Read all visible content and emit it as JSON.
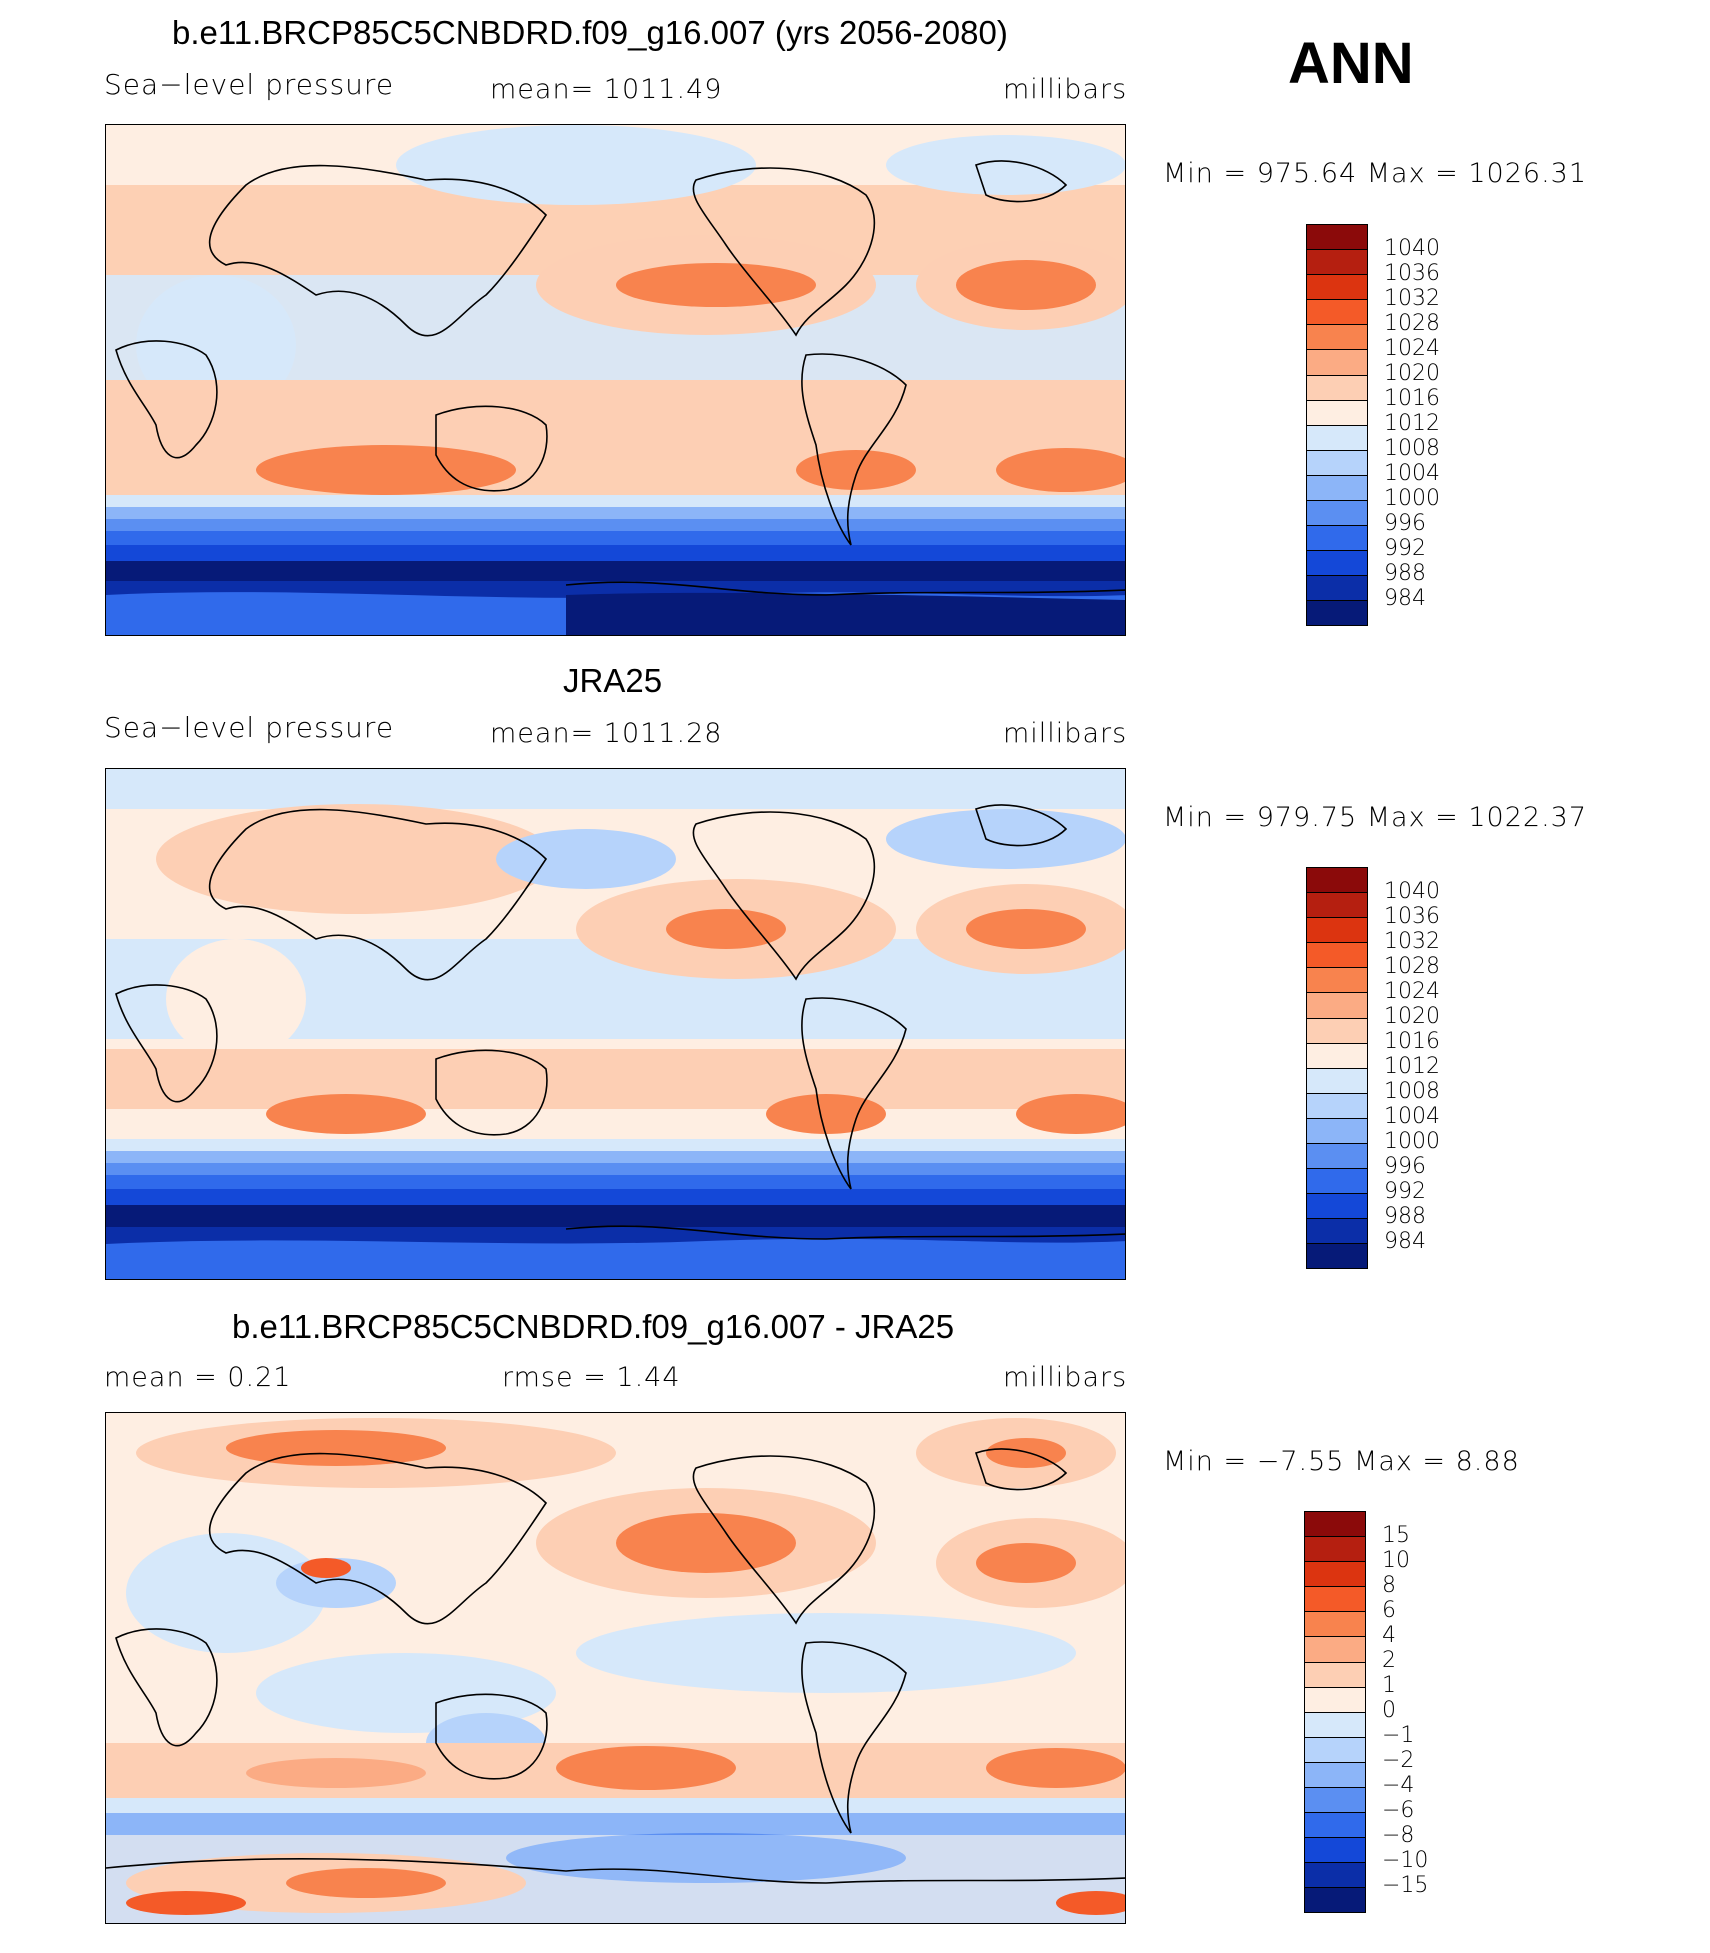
{
  "season": "ANN",
  "panels": [
    {
      "title": "b.e11.BRCP85C5CNBDRD.f09_g16.007 (yrs 2056-2080)",
      "left_label": "Sea−level pressure",
      "center_label": "mean=  1011.49",
      "right_label": "millibars",
      "minmax": "Min  =  975.64  Max  =  1026.31",
      "colorbar_labels": [
        "1040",
        "1036",
        "1032",
        "1028",
        "1024",
        "1020",
        "1016",
        "1012",
        "1008",
        "1004",
        "1000",
        "996",
        "992",
        "988",
        "984"
      ]
    },
    {
      "title": "JRA25",
      "left_label": "Sea−level pressure",
      "center_label": "mean=  1011.28",
      "right_label": "millibars",
      "minmax": "Min  =  979.75  Max  =  1022.37",
      "colorbar_labels": [
        "1040",
        "1036",
        "1032",
        "1028",
        "1024",
        "1020",
        "1016",
        "1012",
        "1008",
        "1004",
        "1000",
        "996",
        "992",
        "988",
        "984"
      ]
    },
    {
      "title": "b.e11.BRCP85C5CNBDRD.f09_g16.007 - JRA25",
      "left_label": "mean  =     0.21",
      "center_label": "rmse  =     1.44",
      "right_label": "millibars",
      "minmax": "Min  =   −7.55  Max  =     8.88",
      "colorbar_labels": [
        "15",
        "10",
        "8",
        "6",
        "4",
        "2",
        "1",
        "0",
        "−1",
        "−2",
        "−4",
        "−6",
        "−8",
        "−10",
        "−15"
      ]
    }
  ],
  "colors": {
    "levels": [
      "#8b0a0a",
      "#b51f10",
      "#dc3410",
      "#f45a28",
      "#f8834e",
      "#fbab84",
      "#fdcfb4",
      "#feeee2",
      "#d6e8fa",
      "#b6d3fb",
      "#8cb5f8",
      "#5b8ff2",
      "#306aeb",
      "#1448d8",
      "#0b2ea8",
      "#061a78"
    ]
  }
}
